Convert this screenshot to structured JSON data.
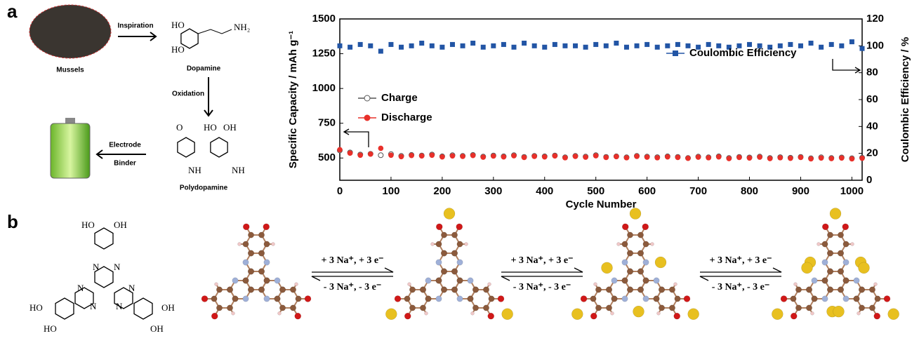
{
  "panel_labels": [
    "a",
    "b"
  ],
  "panel_a": {
    "labels": {
      "inspiration": "Inspiration",
      "mussels": "Mussels",
      "dopamine": "Dopamine",
      "oxidation": "Oxidation",
      "polydopamine": "Polydopamine",
      "electrode": "Electrode",
      "binder": "Binder"
    },
    "dopamine_atoms": [
      "HO",
      "HO",
      "NH₂"
    ],
    "polydopamine_atoms": [
      "O",
      "HO",
      "OH",
      "NH",
      "NH"
    ]
  },
  "chart_data": {
    "type": "scatter",
    "x_label": "Cycle Number",
    "y_label": "Specific Capacity / mAh g⁻¹",
    "y2_label": "Coulombic Efficiency / %",
    "xlim": [
      0,
      1020
    ],
    "xticks": [
      0,
      100,
      200,
      300,
      400,
      500,
      600,
      700,
      800,
      900,
      1000
    ],
    "ylim": [
      340,
      1500
    ],
    "yticks": [
      500,
      750,
      1000,
      1250,
      1500
    ],
    "y2lim": [
      0,
      120
    ],
    "y2ticks": [
      0,
      20,
      40,
      60,
      80,
      100,
      120
    ],
    "x": [
      0,
      20,
      40,
      60,
      80,
      100,
      120,
      140,
      160,
      180,
      200,
      220,
      240,
      260,
      280,
      300,
      320,
      340,
      360,
      380,
      400,
      420,
      440,
      460,
      480,
      500,
      520,
      540,
      560,
      580,
      600,
      620,
      640,
      660,
      680,
      700,
      720,
      740,
      760,
      780,
      800,
      820,
      840,
      860,
      880,
      900,
      920,
      940,
      960,
      980,
      1000,
      1020
    ],
    "series": [
      {
        "name": "Charge",
        "color": "#555555",
        "values": [
          555,
          540,
          525,
          530,
          520,
          528,
          515,
          522,
          518,
          525,
          512,
          520,
          515,
          522,
          510,
          518,
          512,
          520,
          508,
          515,
          512,
          518,
          505,
          515,
          510,
          520,
          508,
          512,
          505,
          515,
          510,
          506,
          512,
          508,
          500,
          510,
          505,
          512,
          500,
          508,
          504,
          510,
          500,
          506,
          502,
          508,
          498,
          505,
          500,
          504,
          498,
          502
        ]
      },
      {
        "name": "Discharge",
        "color": "#e8302a",
        "values": [
          560,
          535,
          520,
          528,
          570,
          520,
          510,
          518,
          515,
          520,
          508,
          515,
          512,
          518,
          506,
          514,
          508,
          516,
          504,
          512,
          508,
          515,
          502,
          512,
          506,
          516,
          504,
          510,
          502,
          512,
          506,
          502,
          508,
          504,
          498,
          506,
          502,
          508,
          496,
          504,
          500,
          506,
          496,
          502,
          498,
          504,
          494,
          500,
          496,
          500,
          494,
          498
        ]
      },
      {
        "name": "Coulombic Efficiency",
        "color": "#2255a5",
        "axis": "y2",
        "values": [
          100,
          99,
          101,
          100,
          96,
          101,
          99,
          100,
          102,
          100,
          99,
          101,
          100,
          102,
          99,
          100,
          101,
          99,
          102,
          100,
          99,
          101,
          100,
          100,
          99,
          101,
          100,
          102,
          99,
          100,
          101,
          99,
          100,
          101,
          100,
          99,
          101,
          100,
          99,
          100,
          101,
          100,
          99,
          100,
          101,
          100,
          102,
          99,
          101,
          100,
          103,
          98
        ]
      }
    ]
  },
  "panel_b": {
    "molecule_atoms": [
      "HO",
      "OH",
      "N",
      "N",
      "N",
      "N",
      "N",
      "N",
      "HO",
      "HO",
      "OH",
      "OH"
    ],
    "reactions": [
      {
        "forward": "+ 3 Na⁺, + 3 e⁻",
        "reverse": "- 3 Na⁺, - 3 e⁻"
      },
      {
        "forward": "+ 3 Na⁺, + 3 e⁻",
        "reverse": "- 3 Na⁺, - 3 e⁻"
      },
      {
        "forward": "+ 3 Na⁺, + 3 e⁻",
        "reverse": "- 3 Na⁺, - 3 e⁻"
      }
    ]
  }
}
